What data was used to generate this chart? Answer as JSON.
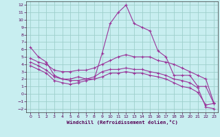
{
  "xlabel": "Windchill (Refroidissement éolien,°C)",
  "xlim": [
    -0.5,
    23.5
  ],
  "ylim": [
    -2.5,
    12.5
  ],
  "xticks": [
    0,
    1,
    2,
    3,
    4,
    5,
    6,
    7,
    8,
    9,
    10,
    11,
    12,
    13,
    14,
    15,
    16,
    17,
    18,
    19,
    20,
    21,
    22,
    23
  ],
  "yticks": [
    -2,
    -1,
    0,
    1,
    2,
    3,
    4,
    5,
    6,
    7,
    8,
    9,
    10,
    11,
    12
  ],
  "background_color": "#c8eef0",
  "grid_color": "#9ecfcc",
  "line_color": "#993399",
  "line1_x": [
    0,
    1,
    2,
    3,
    4,
    5,
    6,
    7,
    8,
    9,
    10,
    11,
    12,
    13,
    14,
    15,
    16,
    17,
    18,
    19,
    20,
    21,
    22,
    23
  ],
  "line1_y": [
    6.3,
    5.0,
    4.3,
    2.5,
    2.0,
    2.0,
    2.3,
    2.0,
    2.0,
    5.5,
    9.5,
    11.0,
    12.0,
    9.5,
    9.0,
    8.5,
    5.8,
    5.0,
    2.5,
    2.5,
    2.5,
    1.0,
    1.0,
    -1.3
  ],
  "line2_x": [
    0,
    1,
    2,
    3,
    4,
    5,
    6,
    7,
    8,
    9,
    10,
    11,
    12,
    13,
    14,
    15,
    16,
    17,
    18,
    19,
    20,
    21,
    22,
    23
  ],
  "line2_y": [
    4.8,
    4.3,
    4.0,
    3.2,
    3.0,
    3.0,
    3.2,
    3.2,
    3.5,
    4.0,
    4.5,
    5.0,
    5.3,
    5.0,
    5.0,
    5.0,
    4.5,
    4.3,
    4.0,
    3.5,
    3.0,
    2.5,
    2.0,
    -1.2
  ],
  "line3_x": [
    0,
    1,
    2,
    3,
    4,
    5,
    6,
    7,
    8,
    9,
    10,
    11,
    12,
    13,
    14,
    15,
    16,
    17,
    18,
    19,
    20,
    21,
    22,
    23
  ],
  "line3_y": [
    4.3,
    3.8,
    3.2,
    2.3,
    2.0,
    1.8,
    1.8,
    2.0,
    2.3,
    3.0,
    3.3,
    3.3,
    3.5,
    3.3,
    3.3,
    3.0,
    2.8,
    2.5,
    2.0,
    1.8,
    1.5,
    0.8,
    -1.8,
    -2.0
  ],
  "line4_x": [
    0,
    1,
    2,
    3,
    4,
    5,
    6,
    7,
    8,
    9,
    10,
    11,
    12,
    13,
    14,
    15,
    16,
    17,
    18,
    19,
    20,
    21,
    22,
    23
  ],
  "line4_y": [
    3.8,
    3.3,
    2.8,
    1.8,
    1.5,
    1.3,
    1.5,
    1.8,
    2.0,
    2.3,
    2.8,
    2.8,
    3.0,
    2.8,
    2.8,
    2.5,
    2.3,
    2.0,
    1.5,
    1.0,
    0.8,
    0.2,
    -1.5,
    -1.3
  ]
}
